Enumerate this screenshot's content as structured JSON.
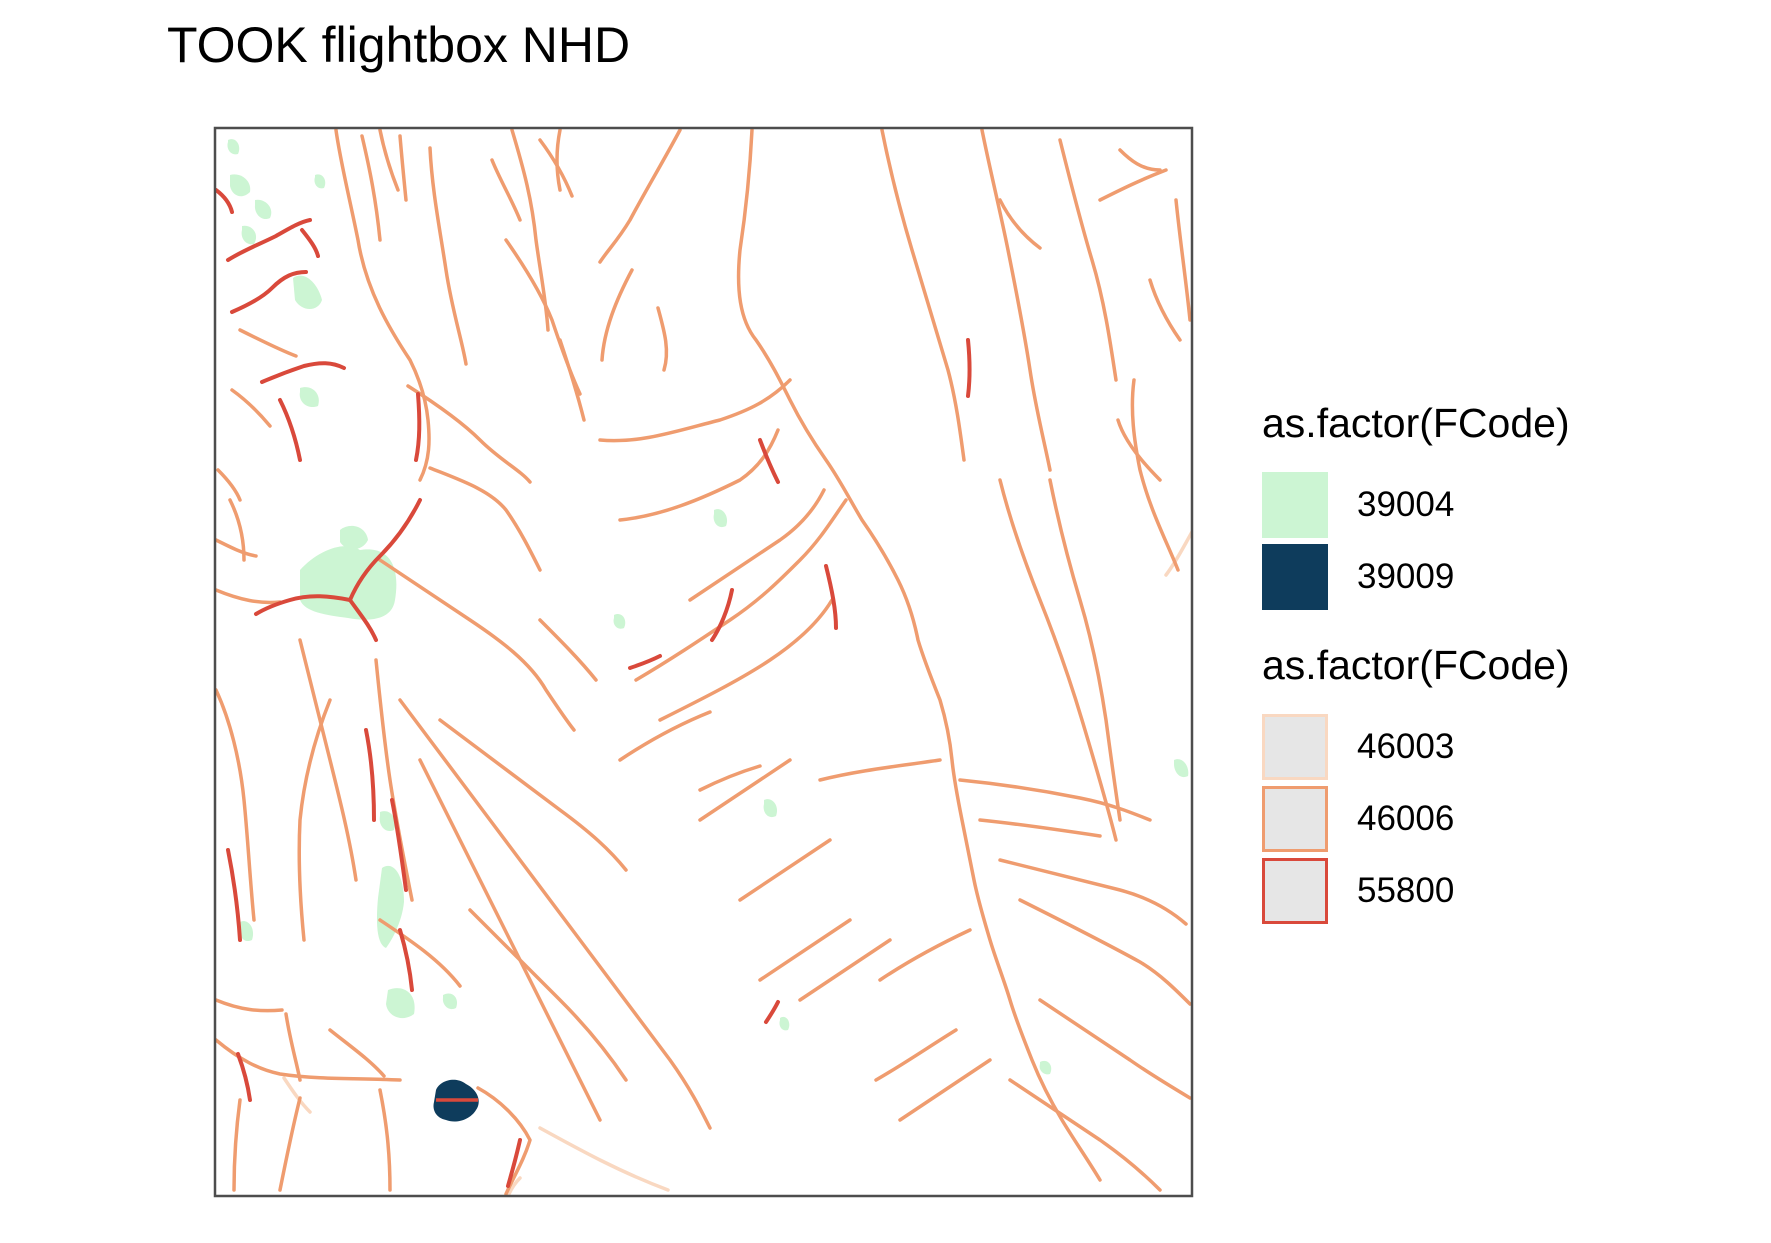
{
  "title": "TOOK flightbox NHD",
  "colors": {
    "waterbody_39004": "#ccf5d3",
    "waterbody_39009": "#0e3c5c",
    "flowline_46003": "#f9d8c1",
    "flowline_46006": "#ef9c6f",
    "flowline_55800": "#d9493b",
    "legend_fill_line": "#e6e6e6",
    "panel_border": "#4d4d4d"
  },
  "legend": {
    "groups": [
      {
        "title": "as.factor(FCode)",
        "kind": "fill",
        "entries": [
          {
            "label": "39004",
            "color": "#ccf5d3"
          },
          {
            "label": "39009",
            "color": "#0e3c5c"
          }
        ]
      },
      {
        "title": "as.factor(FCode)",
        "kind": "line",
        "entries": [
          {
            "label": "46003",
            "color": "#f9d8c1"
          },
          {
            "label": "46006",
            "color": "#ef9c6f"
          },
          {
            "label": "55800",
            "color": "#d9493b"
          }
        ]
      }
    ]
  }
}
